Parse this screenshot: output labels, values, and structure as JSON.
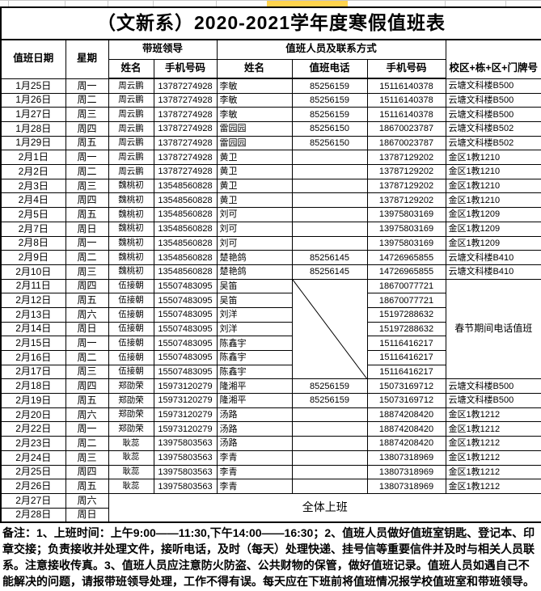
{
  "title": "（文新系）2020-2021学年度寒假值班表",
  "header": {
    "duty_date": "值班日期",
    "weekday": "星期",
    "leader_group": "带班领导",
    "staff_group": "值班人员及联系方式",
    "leader_name": "姓名",
    "leader_mobile": "手机号码",
    "staff_name": "姓名",
    "duty_phone": "值班电话",
    "staff_mobile": "手机号码",
    "location": "校区+栋+区+门牌号"
  },
  "special": {
    "festival_note": "春节期间电话值班",
    "all_work": "全体上班"
  },
  "colors": {
    "highlight_yellow": "#ffd34d"
  },
  "rows": [
    {
      "date": "1月25日",
      "week": "周一",
      "leader": "周云鹏",
      "leader_mobile": "13787274928",
      "name": "李敏",
      "phone": "85256159",
      "mobile": "15116140378",
      "location": "云塘文科楼B500"
    },
    {
      "date": "1月26日",
      "week": "周二",
      "leader": "周云鹏",
      "leader_mobile": "13787274928",
      "name": "李敏",
      "phone": "85256159",
      "mobile": "15116140378",
      "location": "云塘文科楼B500"
    },
    {
      "date": "1月27日",
      "week": "周三",
      "leader": "周云鹏",
      "leader_mobile": "13787274928",
      "name": "李敏",
      "phone": "85256159",
      "mobile": "15116140378",
      "location": "云塘文科楼B500"
    },
    {
      "date": "1月28日",
      "week": "周四",
      "leader": "周云鹏",
      "leader_mobile": "13787274928",
      "name": "雷园园",
      "phone": "85256150",
      "mobile": "18670023787",
      "location": "云塘文科楼B502"
    },
    {
      "date": "1月29日",
      "week": "周五",
      "leader": "周云鹏",
      "leader_mobile": "13787274928",
      "name": "雷园园",
      "phone": "85256150",
      "mobile": "18670023787",
      "location": "云塘文科楼B502"
    },
    {
      "date": "2月1日",
      "week": "周一",
      "leader": "周云鹏",
      "leader_mobile": "13787274928",
      "name": "黄卫",
      "phone": "",
      "mobile": "13787129202",
      "location": "金区1教1210"
    },
    {
      "date": "2月2日",
      "week": "周二",
      "leader": "周云鹏",
      "leader_mobile": "13787274928",
      "name": "黄卫",
      "phone": "",
      "mobile": "13787129202",
      "location": "金区1教1210"
    },
    {
      "date": "2月3日",
      "week": "周三",
      "leader": "魏桃初",
      "leader_mobile": "13548560828",
      "name": "黄卫",
      "phone": "",
      "mobile": "13787129202",
      "location": "金区1教1210"
    },
    {
      "date": "2月4日",
      "week": "周四",
      "leader": "魏桃初",
      "leader_mobile": "13548560828",
      "name": "黄卫",
      "phone": "",
      "mobile": "13787129202",
      "location": "金区1教1210"
    },
    {
      "date": "2月5日",
      "week": "周五",
      "leader": "魏桃初",
      "leader_mobile": "13548560828",
      "name": "刘可",
      "phone": "",
      "mobile": "13975803169",
      "location": "金区1教1209"
    },
    {
      "date": "2月7日",
      "week": "周日",
      "leader": "魏桃初",
      "leader_mobile": "13548560828",
      "name": "刘可",
      "phone": "",
      "mobile": "13975803169",
      "location": "金区1教1209"
    },
    {
      "date": "2月8日",
      "week": "周一",
      "leader": "魏桃初",
      "leader_mobile": "13548560828",
      "name": "刘可",
      "phone": "",
      "mobile": "13975803169",
      "location": "金区1教1209"
    },
    {
      "date": "2月9日",
      "week": "周二",
      "leader": "魏桃初",
      "leader_mobile": "13548560828",
      "name": "楚艳鸽",
      "phone": "85256145",
      "mobile": "14726965855",
      "location": "云塘文科楼B410"
    },
    {
      "date": "2月10日",
      "week": "周三",
      "leader": "魏桃初",
      "leader_mobile": "13548560828",
      "name": "楚艳鸽",
      "phone": "85256145",
      "mobile": "14726965855",
      "location": "云塘文科楼B410"
    },
    {
      "date": "2月11日",
      "week": "周四",
      "leader": "伍接朝",
      "leader_mobile": "15507483095",
      "name": "吴笛",
      "mobile": "18670077721",
      "diag": "start",
      "fest": "start"
    },
    {
      "date": "2月12日",
      "week": "周五",
      "leader": "伍接朝",
      "leader_mobile": "15507483095",
      "name": "吴笛",
      "mobile": "18670077721",
      "diag": "cont",
      "fest": "cont"
    },
    {
      "date": "2月13日",
      "week": "周六",
      "leader": "伍接朝",
      "leader_mobile": "15507483095",
      "name": "刘洋",
      "mobile": "15197288632",
      "diag": "cont",
      "fest": "cont"
    },
    {
      "date": "2月14日",
      "week": "周日",
      "leader": "伍接朝",
      "leader_mobile": "15507483095",
      "name": "刘洋",
      "mobile": "15197288632",
      "diag": "cont",
      "fest": "cont"
    },
    {
      "date": "2月15日",
      "week": "周一",
      "leader": "伍接朝",
      "leader_mobile": "15507483095",
      "name": "陈鑫宇",
      "mobile": "15116416217",
      "diag": "cont",
      "fest": "cont"
    },
    {
      "date": "2月16日",
      "week": "周二",
      "leader": "伍接朝",
      "leader_mobile": "15507483095",
      "name": "陈鑫宇",
      "mobile": "15116416217",
      "diag": "cont",
      "fest": "cont"
    },
    {
      "date": "2月17日",
      "week": "周三",
      "leader": "伍接朝",
      "leader_mobile": "15507483095",
      "name": "陈鑫宇",
      "mobile": "15116416217",
      "diag": "cont",
      "fest": "cont"
    },
    {
      "date": "2月18日",
      "week": "周四",
      "leader": "郑劭荣",
      "leader_mobile": "15973120279",
      "name": "隆湘平",
      "phone": "85256159",
      "mobile": "15073169712",
      "location": "云塘文科楼B500"
    },
    {
      "date": "2月19日",
      "week": "周五",
      "leader": "郑劭荣",
      "leader_mobile": "15973120279",
      "name": "隆湘平",
      "phone": "85256159",
      "mobile": "15073169712",
      "location": "云塘文科楼B500"
    },
    {
      "date": "2月20日",
      "week": "周六",
      "leader": "郑劭荣",
      "leader_mobile": "15973120279",
      "name": "汤路",
      "phone": "",
      "mobile": "18874208420",
      "location": "金区1教1212"
    },
    {
      "date": "2月22日",
      "week": "周一",
      "leader": "郑劭荣",
      "leader_mobile": "15973120279",
      "name": "汤路",
      "phone": "",
      "mobile": "18874208420",
      "location": "金区1教1212"
    },
    {
      "date": "2月23日",
      "week": "周二",
      "leader": "耿蕊",
      "leader_mobile": "13975803563",
      "name": "汤路",
      "phone": "",
      "mobile": "18874208420",
      "location": "金区1教1212"
    },
    {
      "date": "2月24日",
      "week": "周三",
      "leader": "耿蕊",
      "leader_mobile": "13975803563",
      "name": "李青",
      "phone": "",
      "mobile": "13807318969",
      "location": "金区1教1212"
    },
    {
      "date": "2月25日",
      "week": "周四",
      "leader": "耿蕊",
      "leader_mobile": "13975803563",
      "name": "李青",
      "phone": "",
      "mobile": "13807318969",
      "location": "金区1教1212"
    },
    {
      "date": "2月26日",
      "week": "周五",
      "leader": "耿蕊",
      "leader_mobile": "13975803563",
      "name": "李青",
      "phone": "",
      "mobile": "13807318969",
      "location": "金区1教1212"
    },
    {
      "date": "2月27日",
      "week": "周六",
      "allwork": "start"
    },
    {
      "date": "2月28日",
      "week": "周日",
      "allwork": "cont"
    }
  ],
  "remark": "备注：1、上班时间：上午9:00——11:30,下午14:00——16:30；2、值班人员做好值班室钥匙、登记本、印章交接；负责接收并处理文件，接听电话，及时（每天）处理快递、挂号信等重要信件并及时与相关人员联系。注意接收传真。3、值班人员应注意防火防盗、公共财物的保管，做好值班记录。值班人员如遇自己不能解决的问题，请报带班领导处理，工作不得有误。每天应在下班前将值班情况报学校值班室和带班领导。"
}
